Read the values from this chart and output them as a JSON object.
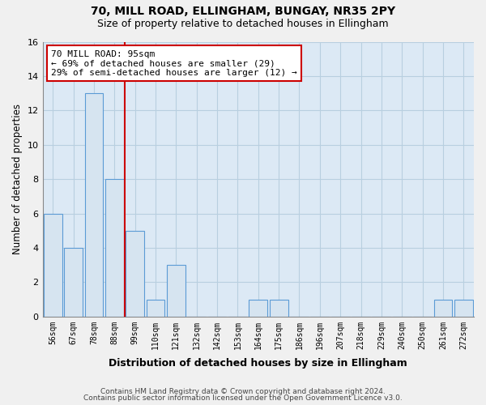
{
  "title1": "70, MILL ROAD, ELLINGHAM, BUNGAY, NR35 2PY",
  "title2": "Size of property relative to detached houses in Ellingham",
  "xlabel": "Distribution of detached houses by size in Ellingham",
  "ylabel": "Number of detached properties",
  "bins": [
    "56sqm",
    "67sqm",
    "78sqm",
    "88sqm",
    "99sqm",
    "110sqm",
    "121sqm",
    "132sqm",
    "142sqm",
    "153sqm",
    "164sqm",
    "175sqm",
    "186sqm",
    "196sqm",
    "207sqm",
    "218sqm",
    "229sqm",
    "240sqm",
    "250sqm",
    "261sqm",
    "272sqm"
  ],
  "values": [
    6,
    4,
    13,
    8,
    5,
    1,
    3,
    0,
    0,
    0,
    1,
    1,
    0,
    0,
    0,
    0,
    0,
    0,
    0,
    1,
    1
  ],
  "bar_color": "#d6e4f0",
  "bar_edgecolor": "#5b9bd5",
  "annotation_line1": "70 MILL ROAD: 95sqm",
  "annotation_line2": "← 69% of detached houses are smaller (29)",
  "annotation_line3": "29% of semi-detached houses are larger (12) →",
  "annotation_box_color": "white",
  "annotation_box_edgecolor": "#cc0000",
  "vline_color": "#cc0000",
  "footer1": "Contains HM Land Registry data © Crown copyright and database right 2024.",
  "footer2": "Contains public sector information licensed under the Open Government Licence v3.0.",
  "ylim": [
    0,
    16
  ],
  "yticks": [
    0,
    2,
    4,
    6,
    8,
    10,
    12,
    14,
    16
  ],
  "plot_bg_color": "#dce9f5",
  "grid_color": "#b8cfe0",
  "fig_bg_color": "#f0f0f0"
}
